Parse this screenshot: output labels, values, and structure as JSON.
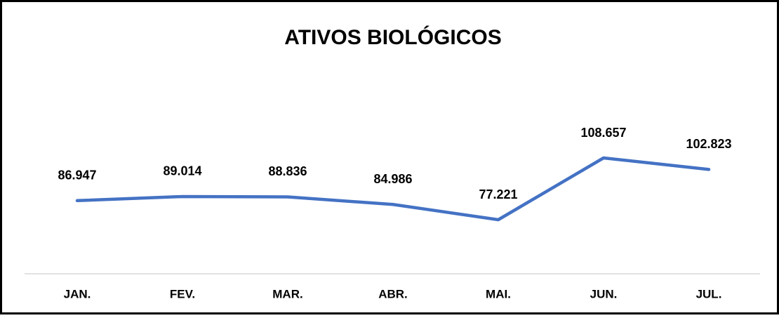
{
  "chart_data": {
    "type": "line",
    "title": "ATIVOS BIOLÓGICOS",
    "categories": [
      "JAN.",
      "FEV.",
      "MAR.",
      "ABR.",
      "MAI.",
      "JUN.",
      "JUL."
    ],
    "values": [
      86947,
      89014,
      88836,
      84986,
      77221,
      108657,
      102823
    ],
    "value_labels": [
      "86.947",
      "89.014",
      "88.836",
      "84.986",
      "77.221",
      "108.657",
      "102.823"
    ],
    "color": "#4472c4"
  }
}
